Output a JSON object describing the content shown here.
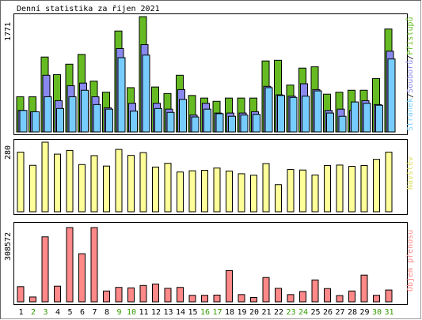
{
  "title": "Denní statistika za říjen 2021",
  "colors": {
    "hits": "#66bb22",
    "files": "#8888ee",
    "pages": "#77ccff",
    "visits": "#ffff99",
    "volume": "#ff8888",
    "weekend": "#339900",
    "panel_border": "#000000",
    "frame_shadow": "#888888"
  },
  "chart_data": [
    {
      "type": "bar",
      "name": "activity",
      "categories": [
        "1",
        "2",
        "3",
        "4",
        "5",
        "6",
        "7",
        "8",
        "9",
        "10",
        "11",
        "12",
        "13",
        "14",
        "15",
        "16",
        "17",
        "18",
        "19",
        "20",
        "21",
        "22",
        "23",
        "24",
        "25",
        "26",
        "27",
        "28",
        "29",
        "30",
        "31"
      ],
      "weekend_days": [
        "2",
        "3",
        "9",
        "10",
        "16",
        "17",
        "23",
        "24",
        "30",
        "31"
      ],
      "ymax_label": "1771",
      "ylim": [
        0,
        1771
      ],
      "legend": [
        "Stránek",
        "/",
        "Souborů",
        "/",
        "Přístupů"
      ],
      "series": [
        {
          "name": "Přístupů",
          "color": "#66bb22",
          "values": [
            540,
            540,
            1150,
            880,
            1040,
            1190,
            780,
            610,
            1550,
            680,
            1770,
            690,
            590,
            870,
            560,
            520,
            470,
            520,
            520,
            520,
            1090,
            1100,
            720,
            980,
            1000,
            580,
            610,
            640,
            640,
            820,
            1580
          ]
        },
        {
          "name": "Souborů",
          "color": "#8888ee",
          "values": [
            330,
            310,
            870,
            480,
            710,
            750,
            540,
            370,
            1280,
            440,
            1340,
            440,
            350,
            650,
            260,
            440,
            290,
            290,
            290,
            310,
            700,
            570,
            550,
            740,
            650,
            330,
            350,
            330,
            480,
            420,
            1240
          ]
        },
        {
          "name": "Stránek",
          "color": "#77ccff",
          "values": [
            330,
            310,
            540,
            360,
            540,
            640,
            420,
            350,
            1140,
            320,
            1180,
            360,
            300,
            500,
            230,
            350,
            280,
            240,
            260,
            270,
            680,
            560,
            530,
            550,
            630,
            290,
            240,
            460,
            440,
            410,
            1120
          ]
        }
      ]
    },
    {
      "type": "bar",
      "name": "visits",
      "categories": [
        "1",
        "2",
        "3",
        "4",
        "5",
        "6",
        "7",
        "8",
        "9",
        "10",
        "11",
        "12",
        "13",
        "14",
        "15",
        "16",
        "17",
        "18",
        "19",
        "20",
        "21",
        "22",
        "23",
        "24",
        "25",
        "26",
        "27",
        "28",
        "29",
        "30",
        "31"
      ],
      "ymax_label": "280",
      "ylim": [
        0,
        280
      ],
      "legend": [
        "Návštěv"
      ],
      "series": [
        {
          "name": "Návštěv",
          "color": "#ffff99",
          "values": [
            240,
            187,
            280,
            232,
            247,
            190,
            226,
            184,
            251,
            227,
            238,
            180,
            195,
            160,
            165,
            167,
            176,
            164,
            153,
            147,
            194,
            109,
            170,
            168,
            148,
            186,
            188,
            183,
            186,
            211,
            240
          ]
        }
      ]
    },
    {
      "type": "bar",
      "name": "volume",
      "categories": [
        "1",
        "2",
        "3",
        "4",
        "5",
        "6",
        "7",
        "8",
        "9",
        "10",
        "11",
        "12",
        "13",
        "14",
        "15",
        "16",
        "17",
        "18",
        "19",
        "20",
        "21",
        "22",
        "23",
        "24",
        "25",
        "26",
        "27",
        "28",
        "29",
        "30",
        "31"
      ],
      "ymax_label": "308572",
      "ylim": [
        0,
        308572
      ],
      "legend": [
        "Objem přenosu"
      ],
      "series": [
        {
          "name": "Objem přenosu",
          "color": "#ff8888",
          "values": [
            63000,
            20000,
            270000,
            65000,
            308572,
            200000,
            308572,
            45000,
            60000,
            58000,
            68000,
            74000,
            56000,
            60000,
            27000,
            27000,
            28000,
            130000,
            30000,
            18000,
            101000,
            56000,
            30000,
            43000,
            91000,
            55000,
            26000,
            45000,
            111000,
            27000,
            49000
          ]
        }
      ]
    }
  ]
}
